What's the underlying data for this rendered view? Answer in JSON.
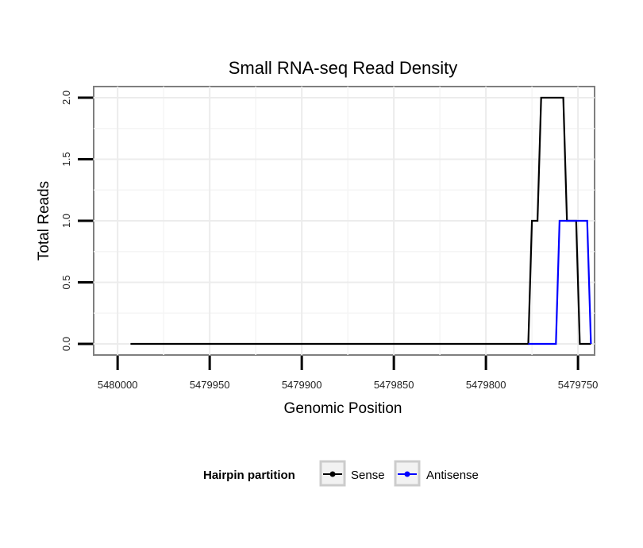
{
  "chart_data": {
    "type": "line",
    "title": "Small RNA-seq Read Density",
    "xlabel": "Genomic Position",
    "ylabel": "Total Reads",
    "x_reversed": true,
    "xlim": [
      5480013,
      5479741
    ],
    "ylim": [
      -0.09,
      2.09
    ],
    "x_ticks": [
      5480000,
      5479950,
      5479900,
      5479850,
      5479800,
      5479750
    ],
    "x_tick_labels": [
      "5480000",
      "5479950",
      "5479900",
      "5479850",
      "5479800",
      "5479750"
    ],
    "y_ticks": [
      0.0,
      0.5,
      1.0,
      1.5,
      2.0
    ],
    "y_tick_labels": [
      "0.0",
      "0.5",
      "1.0",
      "1.5",
      "2.0"
    ],
    "grid": true,
    "legend": {
      "title": "Hairpin partition",
      "placement": "bottom",
      "entries": [
        "Sense",
        "Antisense"
      ]
    },
    "series": [
      {
        "name": "Sense",
        "color": "#000000",
        "x": [
          5479993,
          5479777,
          5479775,
          5479772,
          5479770,
          5479758,
          5479756,
          5479751,
          5479749,
          5479743
        ],
        "y": [
          0,
          0,
          1,
          1,
          2,
          2,
          1,
          1,
          0,
          0
        ]
      },
      {
        "name": "Antisense",
        "color": "#0000ff",
        "x": [
          5479777,
          5479762,
          5479760,
          5479745,
          5479743
        ],
        "y": [
          0,
          0,
          1,
          1,
          0
        ]
      }
    ]
  }
}
